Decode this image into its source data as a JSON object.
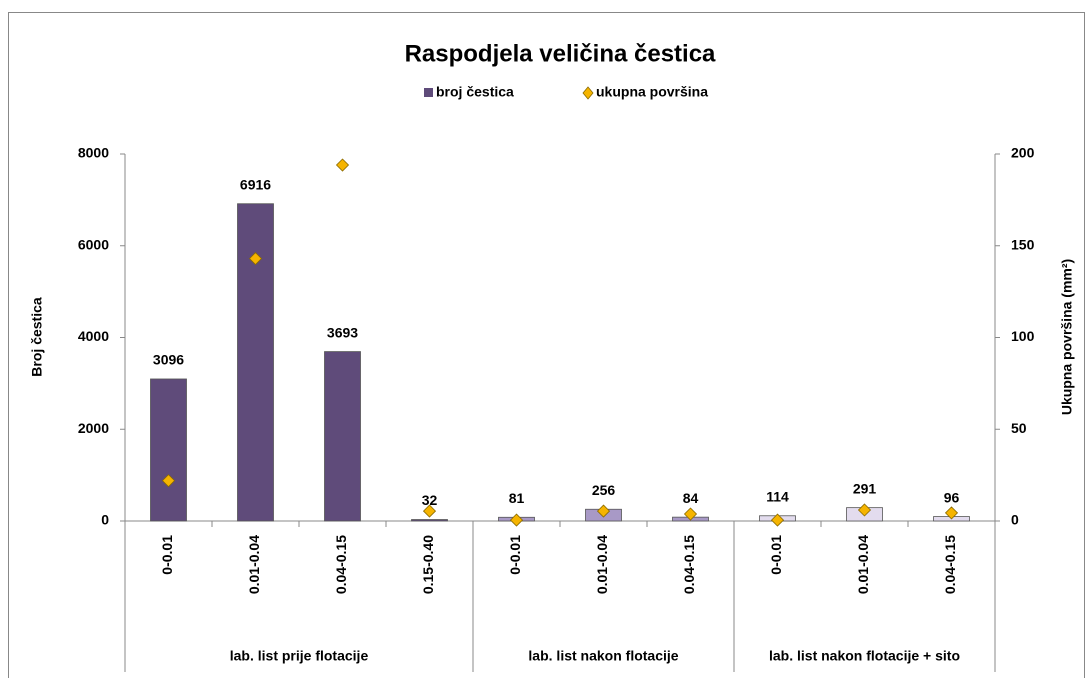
{
  "chart_data": {
    "type": "bar_scatter",
    "title": "Raspodjela veličina čestica",
    "categories": [
      "0-0.01",
      "0.01-0.04",
      "0.04-0.15",
      "0.15-0.40",
      "0-0.01",
      "0.01-0.04",
      "0.04-0.15",
      "0-0.01",
      "0.01-0.04",
      "0.04-0.15"
    ],
    "groups": [
      {
        "name": "lab. list prije flotacije",
        "span": 4
      },
      {
        "name": "lab. list nakon flotacije",
        "span": 3
      },
      {
        "name": "lab. list nakon flotacije + sito",
        "span": 3
      }
    ],
    "series": [
      {
        "name": "broj čestica",
        "type": "bar",
        "color": "#5f4b7a",
        "colors": [
          "#5f4b7a",
          "#5f4b7a",
          "#5f4b7a",
          "#5f4b7a",
          "#a899c6",
          "#a899c6",
          "#a899c6",
          "#e3dcee",
          "#e3dcee",
          "#e3dcee"
        ],
        "values": [
          3096,
          6916,
          3693,
          32,
          81,
          256,
          84,
          114,
          291,
          96
        ]
      },
      {
        "name": "ukupna površina",
        "type": "scatter",
        "axis": "y2",
        "color": "#f5b400",
        "values": [
          22,
          143,
          194,
          5.4,
          0.5,
          5.4,
          3.8,
          0.5,
          6,
          4.4
        ]
      }
    ],
    "ylabel": "Broj čestica",
    "y2label": "Ukupna površina (mm²)",
    "ylim": [
      0,
      8000
    ],
    "yticks": [
      0,
      2000,
      4000,
      6000,
      8000
    ],
    "y2lim": [
      0,
      200
    ],
    "y2ticks": [
      0,
      50,
      100,
      150,
      200
    ]
  }
}
